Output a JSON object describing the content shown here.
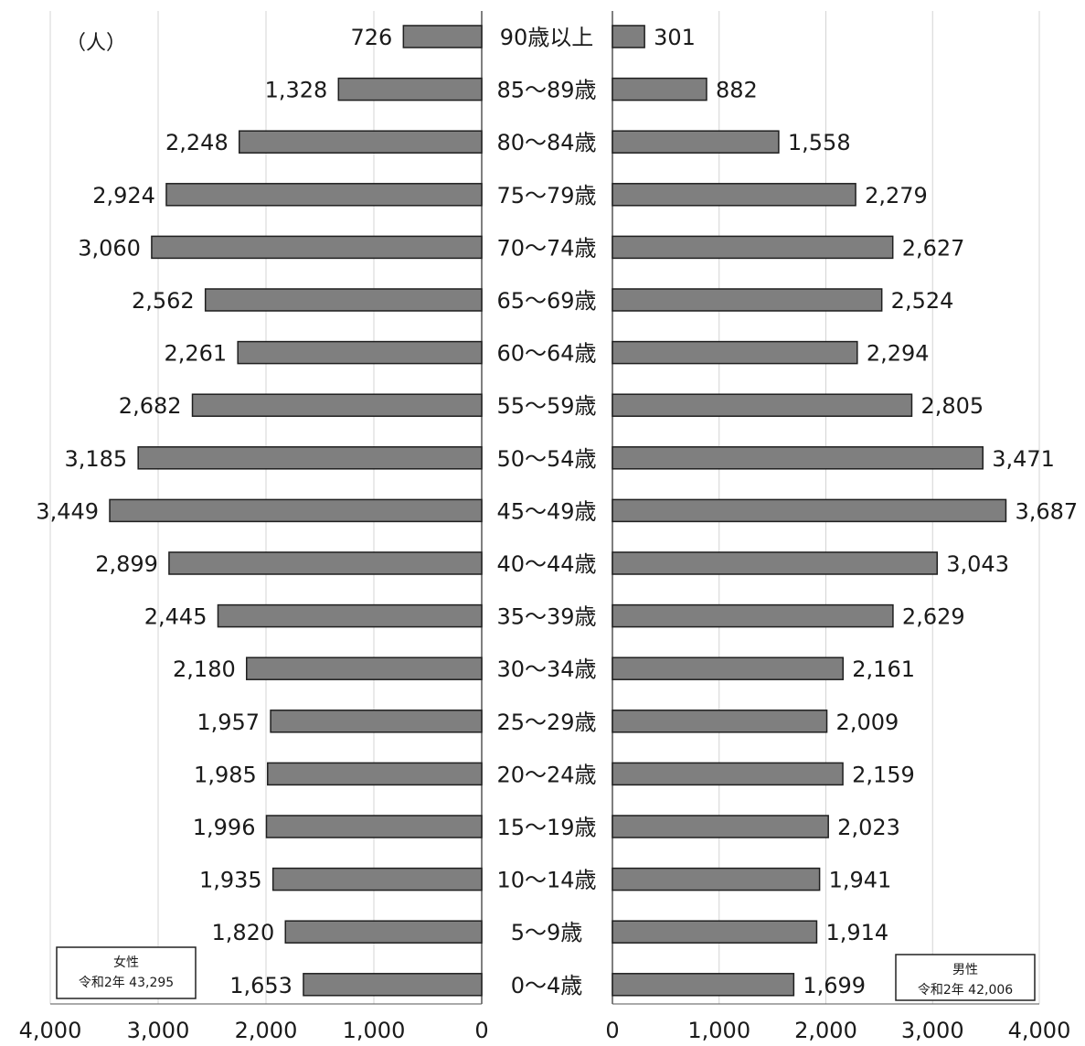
{
  "chart_data": {
    "type": "bar",
    "orientation": "horizontal",
    "layout": "population-pyramid",
    "unit_label": "（人）",
    "categories": [
      "90歳以上",
      "85～89歳",
      "80～84歳",
      "75～79歳",
      "70～74歳",
      "65～69歳",
      "60～64歳",
      "55～59歳",
      "50～54歳",
      "45～49歳",
      "40～44歳",
      "35～39歳",
      "30～34歳",
      "25～29歳",
      "20～24歳",
      "15～19歳",
      "10～14歳",
      "5～9歳",
      "0～4歳"
    ],
    "series": [
      {
        "name": "女性",
        "side": "left",
        "values": [
          726,
          1328,
          2248,
          2924,
          3060,
          2562,
          2261,
          2682,
          3185,
          3449,
          2899,
          2445,
          2180,
          1957,
          1985,
          1996,
          1935,
          1820,
          1653
        ],
        "labels": [
          "726",
          "1,328",
          "2,248",
          "2,924",
          "3,060",
          "2,562",
          "2,261",
          "2,682",
          "3,185",
          "3,449",
          "2,899",
          "2,445",
          "2,180",
          "1,957",
          "1,985",
          "1,996",
          "1,935",
          "1,820",
          "1,653"
        ]
      },
      {
        "name": "男性",
        "side": "right",
        "values": [
          301,
          882,
          1558,
          2279,
          2627,
          2524,
          2294,
          2805,
          3471,
          3687,
          3043,
          2629,
          2161,
          2009,
          2159,
          2023,
          1941,
          1914,
          1699
        ],
        "labels": [
          "301",
          "882",
          "1,558",
          "2,279",
          "2,627",
          "2,524",
          "2,294",
          "2,805",
          "3,471",
          "3,687",
          "3,043",
          "2,629",
          "2,161",
          "2,009",
          "2,159",
          "2,023",
          "1,941",
          "1,914",
          "1,699"
        ]
      }
    ],
    "xlim": [
      0,
      4000
    ],
    "xticks": [
      0,
      1000,
      2000,
      3000,
      4000
    ],
    "left_tick_labels": [
      "4,000",
      "3,000",
      "2,000",
      "1,000",
      "0"
    ],
    "right_tick_labels": [
      "0",
      "1,000",
      "2,000",
      "3,000",
      "4,000"
    ],
    "grid": true,
    "bar_color": "#7f7f7f",
    "bar_edge_color": "#1f1f1f",
    "legends": [
      {
        "position": "bottom-left",
        "line1": "女性",
        "line2": "令和2年 43,295"
      },
      {
        "position": "bottom-right",
        "line1": "男性",
        "line2": "令和2年 42,006"
      }
    ]
  }
}
